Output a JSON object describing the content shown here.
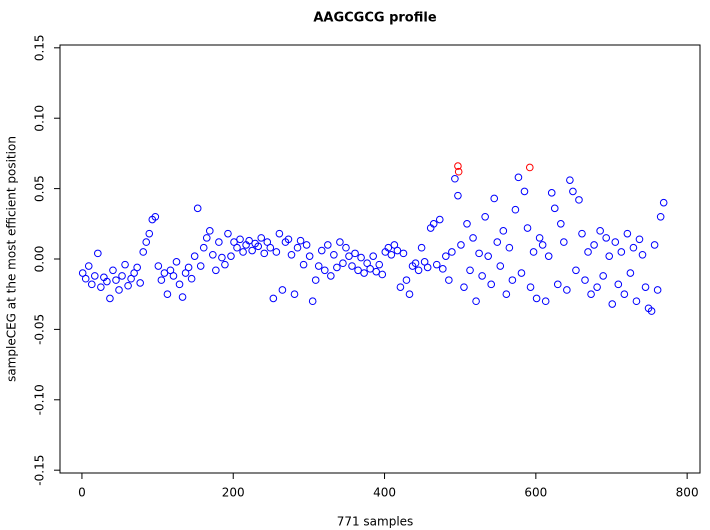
{
  "chart_data": {
    "type": "scatter",
    "title": "AAGCGCG profile",
    "x_label": "771 samples",
    "y_label": "sampleCEG at the most efficient position",
    "xlim": [
      -29,
      817
    ],
    "ylim": [
      -0.152,
      0.152
    ],
    "xticks": [
      0,
      200,
      400,
      600,
      800
    ],
    "yticks": [
      {
        "value": -0.15,
        "label": "-0.15"
      },
      {
        "value": -0.1,
        "label": "-0.10"
      },
      -0.05,
      {
        "value": 0,
        "label": "0.00"
      },
      0.05,
      {
        "value": 0.1,
        "label": "0.10"
      },
      0.15
    ],
    "series": [
      {
        "color": "#0000ff",
        "x": [
          1,
          5,
          9,
          13,
          17,
          21,
          25,
          29,
          33,
          37,
          41,
          45,
          49,
          53,
          57,
          61,
          65,
          69,
          73,
          77,
          81,
          85,
          89,
          93,
          97,
          101,
          105,
          109,
          113,
          117,
          121,
          125,
          129,
          133,
          137,
          141,
          145,
          149,
          153,
          157,
          161,
          165,
          169,
          173,
          177,
          181,
          185,
          189,
          193,
          197,
          201,
          205,
          209,
          213,
          217,
          221,
          225,
          229,
          233,
          237,
          241,
          245,
          249,
          253,
          257,
          261,
          265,
          269,
          273,
          277,
          281,
          285,
          289,
          293,
          297,
          301,
          305,
          309,
          313,
          317,
          321,
          325,
          329,
          333,
          337,
          341,
          345,
          349,
          353,
          357,
          361,
          365,
          369,
          373,
          377,
          381,
          385,
          389,
          393,
          397,
          401,
          405,
          409,
          413,
          417,
          421,
          425,
          429,
          433,
          437,
          441,
          445,
          449,
          453,
          457,
          461,
          465,
          469,
          473,
          477,
          481,
          485,
          489,
          493,
          497,
          501,
          505,
          509,
          513,
          517,
          521,
          525,
          529,
          533,
          537,
          541,
          545,
          549,
          553,
          557,
          561,
          565,
          569,
          573,
          577,
          581,
          585,
          589,
          593,
          597,
          601,
          605,
          609,
          613,
          617,
          621,
          625,
          629,
          633,
          637,
          641,
          645,
          649,
          653,
          657,
          661,
          665,
          669,
          673,
          677,
          681,
          685,
          689,
          693,
          697,
          701,
          705,
          709,
          713,
          717,
          721,
          725,
          729,
          733,
          737,
          741,
          745,
          749,
          753,
          757,
          761,
          765,
          769
        ],
        "y": [
          -0.01,
          -0.014,
          -0.005,
          -0.018,
          -0.012,
          0.004,
          -0.02,
          -0.013,
          -0.016,
          -0.028,
          -0.008,
          -0.015,
          -0.022,
          -0.012,
          -0.004,
          -0.019,
          -0.014,
          -0.01,
          -0.006,
          -0.017,
          0.005,
          0.012,
          0.018,
          0.028,
          0.03,
          -0.005,
          -0.015,
          -0.01,
          -0.025,
          -0.008,
          -0.012,
          -0.002,
          -0.018,
          -0.027,
          -0.01,
          -0.006,
          -0.014,
          0.002,
          0.036,
          -0.005,
          0.008,
          0.015,
          0.02,
          0.003,
          -0.008,
          0.012,
          0.001,
          -0.004,
          0.018,
          0.002,
          0.012,
          0.008,
          0.014,
          0.005,
          0.01,
          0.013,
          0.006,
          0.011,
          0.009,
          0.015,
          0.004,
          0.012,
          0.008,
          -0.028,
          0.005,
          0.018,
          -0.022,
          0.012,
          0.014,
          0.003,
          -0.025,
          0.008,
          0.013,
          -0.004,
          0.01,
          0.002,
          -0.03,
          -0.015,
          -0.005,
          0.006,
          -0.008,
          0.01,
          -0.012,
          0.003,
          -0.006,
          0.012,
          -0.003,
          0.008,
          0.002,
          -0.005,
          0.004,
          -0.008,
          0.001,
          -0.01,
          -0.003,
          -0.007,
          0.002,
          -0.009,
          -0.004,
          -0.011,
          0.005,
          0.008,
          0.003,
          0.01,
          0.006,
          -0.02,
          0.004,
          -0.015,
          -0.025,
          -0.005,
          -0.003,
          -0.008,
          0.008,
          -0.002,
          -0.006,
          0.022,
          0.025,
          -0.004,
          0.028,
          -0.007,
          0.002,
          -0.015,
          0.005,
          0.057,
          0.045,
          0.01,
          -0.02,
          0.025,
          -0.008,
          0.015,
          -0.03,
          0.004,
          -0.012,
          0.03,
          0.002,
          -0.018,
          0.043,
          0.012,
          -0.005,
          0.02,
          -0.025,
          0.008,
          -0.015,
          0.035,
          0.058,
          -0.01,
          0.048,
          0.022,
          -0.02,
          0.005,
          -0.028,
          0.015,
          0.01,
          -0.03,
          0.002,
          0.047,
          0.036,
          -0.018,
          0.025,
          0.012,
          -0.022,
          0.056,
          0.048,
          -0.008,
          0.042,
          0.018,
          -0.015,
          0.005,
          -0.025,
          0.01,
          -0.02,
          0.02,
          -0.012,
          0.015,
          0.002,
          -0.032,
          0.012,
          -0.018,
          0.005,
          -0.025,
          0.018,
          -0.01,
          0.008,
          -0.03,
          0.014,
          0.003,
          -0.02,
          -0.035,
          -0.037,
          0.01,
          -0.022,
          0.03,
          0.04
        ]
      },
      {
        "color": "#ff0000",
        "x": [
          497,
          498,
          592
        ],
        "y": [
          0.066,
          0.062,
          0.065
        ]
      }
    ]
  }
}
